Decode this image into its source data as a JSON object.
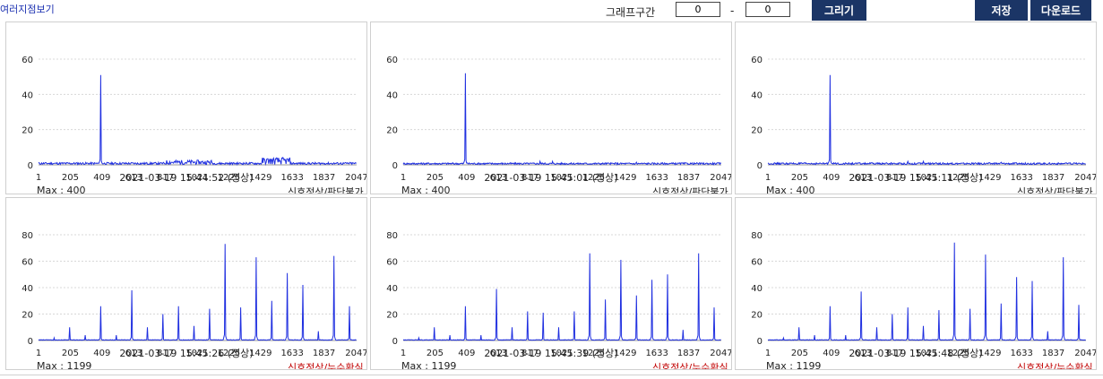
{
  "header": {
    "title": "여러지점보기",
    "range_label": "그래프구간",
    "range_from": "0",
    "range_dash": "-",
    "range_to": "0",
    "draw_button": "그리기",
    "save_button": "저장",
    "download_button": "다운로드"
  },
  "colors": {
    "series": "#1f2fe0",
    "button_bg": "#1b3566",
    "status_normal": "#222222",
    "status_leak": "#c00000"
  },
  "panels": [
    {
      "timestamp": "2021-03-19 15:44:52 (정상)",
      "max_label": "Max : 400",
      "status": "신호정상/판단불가",
      "status_color": "#222222"
    },
    {
      "timestamp": "2021-03-19 15:45:01 (정상)",
      "max_label": "Max : 400",
      "status": "신호정상/판단불가",
      "status_color": "#222222"
    },
    {
      "timestamp": "2021-03-19 15:45:11 (정상)",
      "max_label": "Max : 400",
      "status": "신호정상/판단불가",
      "status_color": "#222222"
    },
    {
      "timestamp": "2021-03-19 15:45:26 (정상)",
      "max_label": "Max : 1199",
      "status": "신호정상/누수확실",
      "status_color": "#c00000"
    },
    {
      "timestamp": "2021-03-19 15:45:39 (정상)",
      "max_label": "Max : 1199",
      "status": "신호정상/누수확실",
      "status_color": "#c00000"
    },
    {
      "timestamp": "2021-03-19 15:45:48 (정상)",
      "max_label": "Max : 1199",
      "status": "신호정상/누수확실",
      "status_color": "#c00000"
    }
  ],
  "chart_data": [
    {
      "type": "line",
      "x_ticks": [
        "1",
        "205",
        "409",
        "613",
        "817",
        "1021",
        "1225",
        "1429",
        "1633",
        "1837",
        "2047"
      ],
      "y_ticks": [
        "0",
        "20",
        "40",
        "60"
      ],
      "ylim": [
        0,
        60
      ],
      "xlim": [
        1,
        2047
      ],
      "grid": true,
      "peaks": [
        [
          400,
          51
        ]
      ],
      "noise": [
        {
          "from": 1,
          "to": 2047,
          "amp": 1.2
        },
        {
          "from": 820,
          "to": 1120,
          "amp": 2.5
        },
        {
          "from": 1440,
          "to": 1620,
          "amp": 4
        }
      ]
    },
    {
      "type": "line",
      "x_ticks": [
        "1",
        "205",
        "409",
        "613",
        "817",
        "1021",
        "1225",
        "1429",
        "1633",
        "1837",
        "2047"
      ],
      "y_ticks": [
        "0",
        "20",
        "40",
        "60"
      ],
      "ylim": [
        0,
        60
      ],
      "xlim": [
        1,
        2047
      ],
      "grid": true,
      "peaks": [
        [
          400,
          52
        ],
        [
          880,
          2
        ],
        [
          960,
          2
        ],
        [
          1500,
          1.5
        ]
      ],
      "noise": [
        {
          "from": 1,
          "to": 2047,
          "amp": 1
        }
      ]
    },
    {
      "type": "line",
      "x_ticks": [
        "1",
        "205",
        "409",
        "613",
        "817",
        "1021",
        "1225",
        "1429",
        "1633",
        "1837",
        "2047"
      ],
      "y_ticks": [
        "0",
        "20",
        "40",
        "60"
      ],
      "ylim": [
        0,
        60
      ],
      "xlim": [
        1,
        2047
      ],
      "grid": true,
      "peaks": [
        [
          400,
          51
        ],
        [
          900,
          2
        ],
        [
          1000,
          2
        ],
        [
          1500,
          1.5
        ]
      ],
      "noise": [
        {
          "from": 1,
          "to": 2047,
          "amp": 1
        }
      ]
    },
    {
      "type": "line",
      "x_ticks": [
        "1",
        "205",
        "409",
        "613",
        "817",
        "1021",
        "1225",
        "1429",
        "1633",
        "1837",
        "2047"
      ],
      "y_ticks": [
        "0",
        "20",
        "40",
        "60",
        "80"
      ],
      "ylim": [
        0,
        80
      ],
      "xlim": [
        1,
        2047
      ],
      "grid": true,
      "peaks": [
        [
          100,
          2
        ],
        [
          200,
          10
        ],
        [
          300,
          4
        ],
        [
          400,
          26
        ],
        [
          500,
          4
        ],
        [
          600,
          38
        ],
        [
          700,
          10
        ],
        [
          800,
          20
        ],
        [
          900,
          26
        ],
        [
          1000,
          11
        ],
        [
          1100,
          24
        ],
        [
          1200,
          73
        ],
        [
          1300,
          25
        ],
        [
          1400,
          63
        ],
        [
          1500,
          30
        ],
        [
          1600,
          51
        ],
        [
          1700,
          42
        ],
        [
          1800,
          7
        ],
        [
          1900,
          64
        ],
        [
          2000,
          26
        ]
      ],
      "noise": [
        {
          "from": 1,
          "to": 2047,
          "amp": 0.4
        }
      ]
    },
    {
      "type": "line",
      "x_ticks": [
        "1",
        "205",
        "409",
        "613",
        "817",
        "1021",
        "1225",
        "1429",
        "1633",
        "1837",
        "2047"
      ],
      "y_ticks": [
        "0",
        "20",
        "40",
        "60",
        "80"
      ],
      "ylim": [
        0,
        80
      ],
      "xlim": [
        1,
        2047
      ],
      "grid": true,
      "peaks": [
        [
          100,
          2
        ],
        [
          200,
          10
        ],
        [
          300,
          4
        ],
        [
          400,
          26
        ],
        [
          500,
          4
        ],
        [
          600,
          39
        ],
        [
          700,
          10
        ],
        [
          800,
          22
        ],
        [
          900,
          21
        ],
        [
          1000,
          10
        ],
        [
          1100,
          22
        ],
        [
          1200,
          66
        ],
        [
          1300,
          31
        ],
        [
          1400,
          61
        ],
        [
          1500,
          34
        ],
        [
          1600,
          46
        ],
        [
          1700,
          50
        ],
        [
          1800,
          8
        ],
        [
          1900,
          66
        ],
        [
          2000,
          25
        ]
      ],
      "noise": [
        {
          "from": 1,
          "to": 2047,
          "amp": 0.4
        }
      ]
    },
    {
      "type": "line",
      "x_ticks": [
        "1",
        "205",
        "409",
        "613",
        "817",
        "1021",
        "1225",
        "1429",
        "1633",
        "1837",
        "2047"
      ],
      "y_ticks": [
        "0",
        "20",
        "40",
        "60",
        "80"
      ],
      "ylim": [
        0,
        80
      ],
      "xlim": [
        1,
        2047
      ],
      "grid": true,
      "peaks": [
        [
          100,
          2
        ],
        [
          200,
          10
        ],
        [
          300,
          4
        ],
        [
          400,
          26
        ],
        [
          500,
          4
        ],
        [
          600,
          37
        ],
        [
          700,
          10
        ],
        [
          800,
          20
        ],
        [
          900,
          25
        ],
        [
          1000,
          11
        ],
        [
          1100,
          23
        ],
        [
          1200,
          74
        ],
        [
          1300,
          24
        ],
        [
          1400,
          65
        ],
        [
          1500,
          28
        ],
        [
          1600,
          48
        ],
        [
          1700,
          45
        ],
        [
          1800,
          7
        ],
        [
          1900,
          63
        ],
        [
          2000,
          27
        ]
      ],
      "noise": [
        {
          "from": 1,
          "to": 2047,
          "amp": 0.4
        }
      ]
    }
  ]
}
